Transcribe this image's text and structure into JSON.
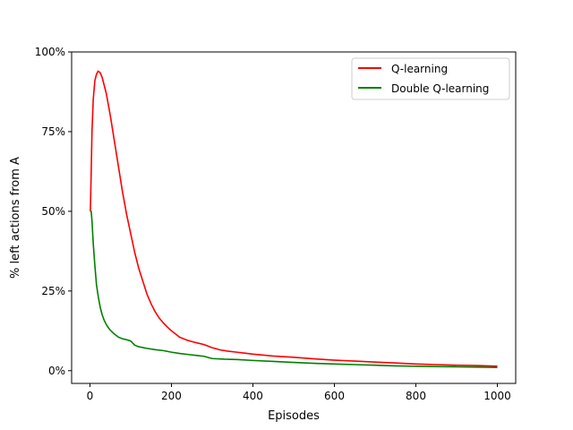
{
  "chart_data": {
    "type": "line",
    "title": "",
    "xlabel": "Episodes",
    "ylabel": "% left actions from A",
    "xlim": [
      -45,
      1045
    ],
    "ylim": [
      -0.04,
      1.0
    ],
    "xticks": [
      0,
      200,
      400,
      600,
      800,
      1000
    ],
    "xtick_labels": [
      "0",
      "200",
      "400",
      "600",
      "800",
      "1000"
    ],
    "yticks": [
      0,
      0.25,
      0.5,
      0.75,
      1.0
    ],
    "ytick_labels": [
      "0%",
      "25%",
      "50%",
      "75%",
      "100%"
    ],
    "grid": false,
    "legend": "top-right",
    "series": [
      {
        "name": "Q-learning",
        "color": "#ff0000",
        "x": [
          1,
          3,
          5,
          8,
          12,
          16,
          20,
          25,
          30,
          40,
          50,
          60,
          70,
          80,
          90,
          100,
          110,
          120,
          130,
          140,
          150,
          160,
          170,
          180,
          190,
          200,
          220,
          240,
          260,
          280,
          300,
          320,
          340,
          360,
          380,
          400,
          450,
          500,
          550,
          600,
          650,
          700,
          750,
          800,
          850,
          900,
          950,
          1000
        ],
        "y": [
          0.5,
          0.62,
          0.75,
          0.85,
          0.91,
          0.93,
          0.94,
          0.935,
          0.92,
          0.87,
          0.8,
          0.72,
          0.64,
          0.56,
          0.49,
          0.43,
          0.37,
          0.32,
          0.28,
          0.24,
          0.21,
          0.185,
          0.165,
          0.15,
          0.137,
          0.125,
          0.105,
          0.095,
          0.088,
          0.082,
          0.072,
          0.065,
          0.061,
          0.058,
          0.055,
          0.052,
          0.046,
          0.042,
          0.037,
          0.033,
          0.03,
          0.027,
          0.024,
          0.021,
          0.019,
          0.017,
          0.016,
          0.014
        ]
      },
      {
        "name": "Double Q-learning",
        "color": "#008000",
        "x": [
          1,
          3,
          5,
          8,
          12,
          16,
          20,
          25,
          30,
          35,
          40,
          45,
          50,
          60,
          70,
          80,
          90,
          100,
          110,
          120,
          140,
          160,
          180,
          200,
          220,
          240,
          260,
          280,
          300,
          330,
          360,
          400,
          450,
          500,
          550,
          600,
          650,
          700,
          750,
          800,
          850,
          900,
          950,
          1000
        ],
        "y": [
          0.5,
          0.5,
          0.47,
          0.4,
          0.33,
          0.27,
          0.235,
          0.2,
          0.175,
          0.158,
          0.145,
          0.135,
          0.127,
          0.115,
          0.105,
          0.1,
          0.097,
          0.093,
          0.08,
          0.075,
          0.07,
          0.066,
          0.063,
          0.058,
          0.054,
          0.051,
          0.048,
          0.045,
          0.038,
          0.036,
          0.035,
          0.032,
          0.029,
          0.026,
          0.023,
          0.021,
          0.019,
          0.017,
          0.015,
          0.014,
          0.013,
          0.012,
          0.011,
          0.01
        ]
      }
    ]
  }
}
